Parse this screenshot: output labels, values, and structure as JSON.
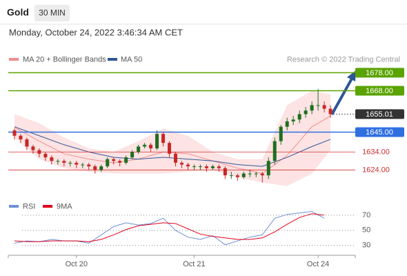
{
  "chart_data": {
    "type": "candlestick",
    "title": "Gold",
    "interval": "30 MIN",
    "subtitle": "Monday, October 24, 2022 3:46:34 AM CET",
    "source": "Research © 2022 Trading Central",
    "xlim": [
      -1,
      55
    ],
    "xticks": [
      {
        "value": 10,
        "label": "Oct 20"
      },
      {
        "value": 29,
        "label": "Oct 21"
      },
      {
        "value": 49,
        "label": "Oct 24"
      }
    ],
    "ylim": [
      1613,
      1682
    ],
    "up_color": "#1f6e1f",
    "down_color": "#c62828",
    "candles": {
      "x": [
        0,
        1,
        2,
        3,
        4,
        5,
        6,
        7,
        8,
        9,
        10,
        11,
        12,
        13,
        14,
        15,
        16,
        17,
        18,
        19,
        20,
        21,
        22,
        23,
        24,
        25,
        26,
        27,
        28,
        29,
        30,
        31,
        32,
        33,
        34,
        35,
        36,
        37,
        38,
        39,
        40,
        41,
        42,
        43,
        44,
        45,
        46,
        47,
        48,
        49,
        50,
        51
      ],
      "open": [
        1646,
        1643,
        1641,
        1637,
        1635,
        1633,
        1631,
        1629,
        1629,
        1628,
        1628,
        1627,
        1627,
        1626,
        1624,
        1626,
        1630,
        1629,
        1628,
        1631,
        1634,
        1637,
        1638,
        1636,
        1644,
        1639,
        1633,
        1628,
        1627,
        1626,
        1626,
        1626,
        1625,
        1626,
        1625,
        1621,
        1621,
        1620,
        1622,
        1622,
        1622,
        1621,
        1629,
        1640,
        1648,
        1651,
        1652,
        1655,
        1657,
        1660,
        1660,
        1658
      ],
      "high": [
        1647,
        1644,
        1642,
        1638,
        1636,
        1634,
        1632,
        1630,
        1630,
        1629,
        1629,
        1628,
        1628,
        1627,
        1627,
        1631,
        1631,
        1630,
        1632,
        1635,
        1638,
        1639,
        1639,
        1646,
        1645,
        1640,
        1634,
        1629,
        1628,
        1627,
        1627,
        1627,
        1627,
        1627,
        1626,
        1623,
        1622,
        1623,
        1624,
        1623,
        1623,
        1631,
        1642,
        1649,
        1653,
        1654,
        1657,
        1659,
        1662,
        1669,
        1662,
        1660
      ],
      "low": [
        1641,
        1639,
        1635,
        1633,
        1631,
        1629,
        1627,
        1627,
        1626,
        1626,
        1625,
        1625,
        1624,
        1622,
        1623,
        1625,
        1627,
        1626,
        1627,
        1630,
        1633,
        1636,
        1634,
        1635,
        1637,
        1631,
        1626,
        1625,
        1624,
        1624,
        1624,
        1623,
        1624,
        1623,
        1619,
        1619,
        1618,
        1619,
        1620,
        1620,
        1617,
        1619,
        1627,
        1638,
        1646,
        1649,
        1650,
        1653,
        1655,
        1657,
        1656,
        1653
      ],
      "close": [
        1643,
        1641,
        1637,
        1635,
        1633,
        1631,
        1629,
        1629,
        1628,
        1628,
        1627,
        1627,
        1626,
        1624,
        1626,
        1630,
        1629,
        1628,
        1631,
        1634,
        1637,
        1638,
        1636,
        1644,
        1639,
        1633,
        1628,
        1627,
        1626,
        1626,
        1626,
        1625,
        1626,
        1625,
        1621,
        1621,
        1620,
        1622,
        1622,
        1622,
        1621,
        1629,
        1640,
        1648,
        1651,
        1652,
        1655,
        1657,
        1660,
        1660,
        1658,
        1655
      ]
    },
    "bands": {
      "name": "MA 20 + Bollinger Bands",
      "color": "#f28b8b",
      "fill": "#fde3e3",
      "x": [
        0,
        4,
        8,
        12,
        16,
        20,
        24,
        28,
        32,
        36,
        40,
        44,
        48,
        51
      ],
      "upper": [
        1655,
        1650,
        1642,
        1636,
        1634,
        1640,
        1647,
        1643,
        1634,
        1630,
        1630,
        1660,
        1668,
        1666
      ],
      "lower": [
        1642,
        1630,
        1625,
        1623,
        1622,
        1622,
        1622,
        1623,
        1624,
        1620,
        1617,
        1615,
        1622,
        1635
      ],
      "values": [
        1647.6,
        1640,
        1633,
        1630,
        1628,
        1630,
        1634,
        1633,
        1629,
        1625,
        1622,
        1632,
        1648,
        1654
      ]
    },
    "ma50": {
      "name": "MA 50",
      "color": "#2f5597",
      "x": [
        0,
        4,
        8,
        12,
        16,
        20,
        24,
        28,
        32,
        36,
        40,
        44,
        48,
        51
      ],
      "values": [
        1648,
        1643,
        1638,
        1634,
        1631,
        1630,
        1631,
        1630,
        1629,
        1627,
        1626,
        1631,
        1637,
        1641
      ]
    },
    "levels": [
      {
        "value": 1678,
        "label": "1678.00",
        "color": "#5aa300",
        "style": "box"
      },
      {
        "value": 1668,
        "label": "1668.00",
        "color": "#5aa300",
        "style": "box"
      },
      {
        "value": 1655.01,
        "label": "1655.01",
        "color": "#333333",
        "style": "current"
      },
      {
        "value": 1645,
        "label": "1645.00",
        "color": "#2f6fe0",
        "style": "box"
      },
      {
        "value": 1634,
        "label": "1634.00",
        "color": "#d32f2f",
        "style": "text"
      },
      {
        "value": 1624,
        "label": "1624.00",
        "color": "#d32f2f",
        "style": "text"
      }
    ],
    "rsi": {
      "ylim": [
        17,
        90
      ],
      "yticks": [
        70,
        50,
        30
      ],
      "series": [
        {
          "name": "RSI",
          "color": "#6d8fd6",
          "x": [
            0,
            2,
            4,
            6,
            8,
            10,
            12,
            14,
            16,
            18,
            20,
            22,
            24,
            26,
            28,
            30,
            32,
            34,
            36,
            38,
            40,
            42,
            44,
            46,
            48,
            50
          ],
          "values": [
            33,
            36,
            35,
            38,
            36,
            36,
            33,
            44,
            55,
            60,
            57,
            59,
            66,
            50,
            41,
            38,
            43,
            31,
            36,
            41,
            44,
            66,
            71,
            73,
            75,
            66
          ]
        },
        {
          "name": "9MA",
          "color": "#e0001b",
          "x": [
            0,
            2,
            4,
            6,
            8,
            10,
            12,
            14,
            16,
            18,
            20,
            22,
            24,
            26,
            28,
            30,
            32,
            34,
            36,
            38,
            40,
            42,
            44,
            46,
            48,
            50
          ],
          "values": [
            36,
            35,
            35,
            36,
            36,
            36,
            35,
            38,
            44,
            51,
            56,
            58,
            60,
            59,
            52,
            45,
            42,
            40,
            38,
            38,
            40,
            48,
            58,
            67,
            72,
            70
          ]
        }
      ]
    }
  }
}
